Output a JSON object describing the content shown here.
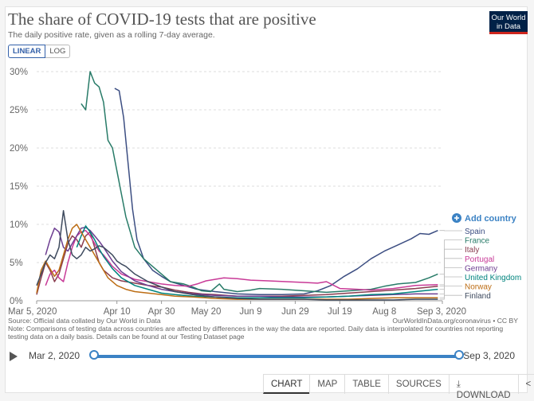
{
  "header": {
    "title": "The share of COVID-19 tests that are positive",
    "subtitle": "The daily positive rate, given as a rolling 7-day average.",
    "logo_line1": "Our World",
    "logo_line2": "in Data"
  },
  "scale": {
    "linear": "LINEAR",
    "log": "LOG"
  },
  "add_country": "Add country",
  "footer": {
    "source": "Source: Official data collated by Our World in Data",
    "credit": "OurWorldInData.org/coronavirus • CC BY",
    "note": "Note: Comparisons of testing data across countries are affected by differences in the way the data are reported. Daily data is interpolated for countries not reporting testing data on a daily basis. Details can be found at our Testing Dataset page"
  },
  "timeline": {
    "start": "Mar 2, 2020",
    "end": "Sep 3, 2020",
    "start_pos": 0,
    "end_pos": 1
  },
  "tabs": {
    "chart": "CHART",
    "map": "MAP",
    "table": "TABLE",
    "sources": "SOURCES",
    "download": "DOWNLOAD"
  },
  "icons": {
    "play": "play-icon",
    "add": "plus-circle-icon",
    "download": "download-icon",
    "share": "share-icon"
  },
  "chart_data": {
    "type": "line",
    "title": "The share of COVID-19 tests that are positive",
    "ylim": [
      0,
      30
    ],
    "y_ticks": [
      0,
      5,
      10,
      15,
      20,
      25,
      30
    ],
    "y_tick_labels": [
      "0%",
      "5%",
      "10%",
      "15%",
      "20%",
      "25%",
      "30%"
    ],
    "x_range": [
      0,
      182
    ],
    "x_ticks": [
      0,
      36,
      56,
      76,
      96,
      116,
      136,
      156,
      182
    ],
    "x_tick_labels": [
      "Mar 5, 2020",
      "Apr 10",
      "Apr 30",
      "May 20",
      "Jun 9",
      "Jun 29",
      "Jul 19",
      "Aug 8",
      "Sep 3, 2020"
    ],
    "series": [
      {
        "name": "Spain",
        "color": "#3c4e82",
        "label_value": 9.2,
        "points": [
          [
            35,
            27.8
          ],
          [
            37,
            27.5
          ],
          [
            39,
            24
          ],
          [
            41,
            18
          ],
          [
            43,
            12
          ],
          [
            45,
            8
          ],
          [
            48,
            5.5
          ],
          [
            52,
            4
          ],
          [
            56,
            3.2
          ],
          [
            60,
            2.5
          ],
          [
            66,
            2
          ],
          [
            72,
            1.5
          ],
          [
            80,
            1.2
          ],
          [
            90,
            0.9
          ],
          [
            100,
            0.8
          ],
          [
            110,
            0.8
          ],
          [
            120,
            0.9
          ],
          [
            126,
            1.3
          ],
          [
            132,
            2
          ],
          [
            138,
            3.2
          ],
          [
            144,
            4.2
          ],
          [
            150,
            5.5
          ],
          [
            156,
            6.5
          ],
          [
            162,
            7.3
          ],
          [
            168,
            8.1
          ],
          [
            172,
            8.8
          ],
          [
            176,
            8.7
          ],
          [
            180,
            9.2
          ]
        ]
      },
      {
        "name": "France",
        "color": "#287b68",
        "label_value": 3.5,
        "points": [
          [
            20,
            25.8
          ],
          [
            22,
            25
          ],
          [
            24,
            30
          ],
          [
            26,
            28.5
          ],
          [
            28,
            28
          ],
          [
            30,
            26
          ],
          [
            32,
            21
          ],
          [
            34,
            20
          ],
          [
            36,
            17
          ],
          [
            38,
            14
          ],
          [
            40,
            11
          ],
          [
            42,
            9
          ],
          [
            44,
            7
          ],
          [
            48,
            5.5
          ],
          [
            52,
            4.5
          ],
          [
            56,
            3.5
          ],
          [
            60,
            2.5
          ],
          [
            66,
            2.2
          ],
          [
            70,
            1.8
          ],
          [
            74,
            1.3
          ],
          [
            78,
            1.2
          ],
          [
            82,
            2.2
          ],
          [
            84,
            1.5
          ],
          [
            90,
            1.2
          ],
          [
            96,
            1.4
          ],
          [
            100,
            1.6
          ],
          [
            110,
            1.5
          ],
          [
            120,
            1.3
          ],
          [
            130,
            1.1
          ],
          [
            140,
            1.3
          ],
          [
            150,
            1.5
          ],
          [
            156,
            1.9
          ],
          [
            162,
            2.2
          ],
          [
            170,
            2.4
          ],
          [
            176,
            3
          ],
          [
            180,
            3.5
          ]
        ]
      },
      {
        "name": "Italy",
        "color": "#8a3d50",
        "label_value": 1.9,
        "points": [
          [
            0,
            0.8
          ],
          [
            2,
            3
          ],
          [
            4,
            5
          ],
          [
            6,
            4
          ],
          [
            8,
            2.5
          ],
          [
            10,
            3.5
          ],
          [
            12,
            5.5
          ],
          [
            14,
            7.5
          ],
          [
            16,
            8.5
          ],
          [
            18,
            8
          ],
          [
            20,
            7
          ],
          [
            22,
            8.5
          ],
          [
            24,
            9
          ],
          [
            26,
            7
          ],
          [
            28,
            5
          ],
          [
            30,
            4
          ],
          [
            34,
            3
          ],
          [
            38,
            2.6
          ],
          [
            44,
            2.3
          ],
          [
            50,
            2
          ],
          [
            56,
            1.8
          ],
          [
            62,
            1.4
          ],
          [
            68,
            1.1
          ],
          [
            74,
            0.9
          ],
          [
            80,
            0.8
          ],
          [
            90,
            0.6
          ],
          [
            100,
            0.6
          ],
          [
            110,
            0.6
          ],
          [
            120,
            0.7
          ],
          [
            130,
            0.8
          ],
          [
            140,
            1
          ],
          [
            150,
            1.2
          ],
          [
            160,
            1.4
          ],
          [
            170,
            1.6
          ],
          [
            180,
            1.9
          ]
        ]
      },
      {
        "name": "Portugal",
        "color": "#c83a97",
        "label_value": 2.1,
        "points": [
          [
            4,
            2
          ],
          [
            6,
            3.5
          ],
          [
            8,
            4
          ],
          [
            10,
            3
          ],
          [
            12,
            2.5
          ],
          [
            14,
            5
          ],
          [
            16,
            7
          ],
          [
            18,
            8.5
          ],
          [
            20,
            9
          ],
          [
            22,
            9.2
          ],
          [
            24,
            8.5
          ],
          [
            26,
            7.5
          ],
          [
            28,
            6.5
          ],
          [
            30,
            6
          ],
          [
            34,
            4.5
          ],
          [
            38,
            3.5
          ],
          [
            44,
            2.8
          ],
          [
            50,
            2.5
          ],
          [
            56,
            2.2
          ],
          [
            62,
            2
          ],
          [
            68,
            1.9
          ],
          [
            72,
            2.2
          ],
          [
            76,
            2.6
          ],
          [
            80,
            2.8
          ],
          [
            84,
            3
          ],
          [
            90,
            2.9
          ],
          [
            96,
            2.7
          ],
          [
            104,
            2.6
          ],
          [
            112,
            2.5
          ],
          [
            120,
            2.4
          ],
          [
            126,
            2.3
          ],
          [
            130,
            2.5
          ],
          [
            136,
            1.6
          ],
          [
            144,
            1.5
          ],
          [
            150,
            1.4
          ],
          [
            160,
            1.6
          ],
          [
            170,
            2
          ],
          [
            180,
            2.1
          ]
        ]
      },
      {
        "name": "Germany",
        "color": "#6d3e91",
        "label_value": 0.9,
        "points": [
          [
            4,
            6
          ],
          [
            6,
            8
          ],
          [
            8,
            9.5
          ],
          [
            10,
            9
          ],
          [
            12,
            7
          ],
          [
            14,
            6.5
          ],
          [
            16,
            7.5
          ],
          [
            18,
            8.5
          ],
          [
            20,
            9.5
          ],
          [
            22,
            9.6
          ],
          [
            24,
            9.2
          ],
          [
            26,
            8.5
          ],
          [
            28,
            7.8
          ],
          [
            30,
            7
          ],
          [
            34,
            5.2
          ],
          [
            38,
            3.8
          ],
          [
            44,
            2.6
          ],
          [
            50,
            2
          ],
          [
            56,
            1.5
          ],
          [
            62,
            1.2
          ],
          [
            70,
            0.9
          ],
          [
            80,
            0.7
          ],
          [
            90,
            0.6
          ],
          [
            100,
            0.6
          ],
          [
            110,
            0.5
          ],
          [
            120,
            0.5
          ],
          [
            130,
            0.5
          ],
          [
            140,
            0.6
          ],
          [
            150,
            0.7
          ],
          [
            160,
            0.8
          ],
          [
            170,
            0.9
          ],
          [
            180,
            0.9
          ]
        ]
      },
      {
        "name": "United Kingdom",
        "color": "#00847e",
        "label_value": 1.5,
        "points": [
          [
            18,
            7
          ],
          [
            20,
            8.5
          ],
          [
            22,
            9.8
          ],
          [
            24,
            9
          ],
          [
            26,
            8
          ],
          [
            28,
            6.8
          ],
          [
            30,
            5.8
          ],
          [
            34,
            4.2
          ],
          [
            38,
            3
          ],
          [
            44,
            2
          ],
          [
            50,
            1.5
          ],
          [
            56,
            1
          ],
          [
            62,
            0.8
          ],
          [
            70,
            0.6
          ],
          [
            80,
            0.5
          ],
          [
            90,
            0.4
          ],
          [
            100,
            0.4
          ],
          [
            110,
            0.4
          ],
          [
            120,
            0.4
          ],
          [
            130,
            0.5
          ],
          [
            140,
            0.6
          ],
          [
            150,
            0.8
          ],
          [
            160,
            0.9
          ],
          [
            170,
            1.2
          ],
          [
            180,
            1.5
          ]
        ]
      },
      {
        "name": "Norway",
        "color": "#bc6d14",
        "label_value": 0.4,
        "points": [
          [
            0,
            1
          ],
          [
            2,
            4
          ],
          [
            4,
            5.2
          ],
          [
            6,
            4.2
          ],
          [
            8,
            3.2
          ],
          [
            10,
            4
          ],
          [
            12,
            6
          ],
          [
            14,
            8
          ],
          [
            16,
            9.5
          ],
          [
            18,
            10
          ],
          [
            20,
            9
          ],
          [
            22,
            8
          ],
          [
            24,
            7
          ],
          [
            26,
            6
          ],
          [
            28,
            5
          ],
          [
            30,
            4
          ],
          [
            32,
            3
          ],
          [
            36,
            2
          ],
          [
            40,
            1.5
          ],
          [
            44,
            1.2
          ],
          [
            50,
            1
          ],
          [
            56,
            0.8
          ],
          [
            62,
            0.6
          ],
          [
            70,
            0.5
          ],
          [
            80,
            0.3
          ],
          [
            90,
            0.2
          ],
          [
            100,
            0.2
          ],
          [
            110,
            0.2
          ],
          [
            120,
            0.2
          ],
          [
            130,
            0.2
          ],
          [
            140,
            0.2
          ],
          [
            150,
            0.3
          ],
          [
            160,
            0.4
          ],
          [
            170,
            0.4
          ],
          [
            180,
            0.4
          ]
        ]
      },
      {
        "name": "Finland",
        "color": "#3e4a5e",
        "label_value": 0.2,
        "points": [
          [
            0,
            2
          ],
          [
            2,
            3.5
          ],
          [
            4,
            5
          ],
          [
            6,
            6
          ],
          [
            8,
            5.5
          ],
          [
            10,
            7
          ],
          [
            12,
            11.8
          ],
          [
            14,
            8
          ],
          [
            16,
            6
          ],
          [
            18,
            5.5
          ],
          [
            20,
            6
          ],
          [
            22,
            7
          ],
          [
            24,
            6.5
          ],
          [
            26,
            6.8
          ],
          [
            28,
            7.2
          ],
          [
            30,
            7
          ],
          [
            32,
            6.5
          ],
          [
            34,
            6
          ],
          [
            36,
            5.2
          ],
          [
            38,
            4.8
          ],
          [
            40,
            4.5
          ],
          [
            44,
            3.5
          ],
          [
            50,
            2.5
          ],
          [
            56,
            1.8
          ],
          [
            62,
            1.2
          ],
          [
            70,
            0.8
          ],
          [
            80,
            0.5
          ],
          [
            90,
            0.3
          ],
          [
            100,
            0.2
          ],
          [
            110,
            0.2
          ],
          [
            120,
            0.2
          ],
          [
            130,
            0.1
          ],
          [
            140,
            0.1
          ],
          [
            150,
            0.1
          ],
          [
            160,
            0.1
          ],
          [
            170,
            0.2
          ],
          [
            180,
            0.2
          ]
        ]
      }
    ]
  }
}
